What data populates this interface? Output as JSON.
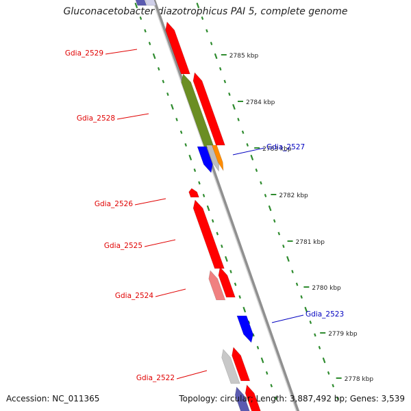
{
  "title": "Gluconacetobacter diazotrophicus PAI 5, complete genome",
  "footer": {
    "accession": "Accession: NC_011365",
    "summary": "Topology: circular; Length: 3,887,492 bp; Genes: 3,539"
  },
  "colors": {
    "backbone": "#909090",
    "backbone_highlight": "#d8d8d8",
    "gc_track": "#2e8b2e",
    "reverse_label": "#e00000",
    "forward_label": "#0000c0",
    "tick_label": "#222222"
  },
  "ticks": [
    {
      "label": "2785 kbp"
    },
    {
      "label": "2784 kbp"
    },
    {
      "label": "2783 kbp"
    },
    {
      "label": "2782 kbp"
    },
    {
      "label": "2781 kbp"
    },
    {
      "label": "2780 kbp"
    },
    {
      "label": "2779 kbp"
    },
    {
      "label": "2778 kbp"
    }
  ],
  "gene_labels": [
    {
      "name": "Gdia_2529",
      "strand": "reverse"
    },
    {
      "name": "Gdia_2528",
      "strand": "reverse"
    },
    {
      "name": "Gdia_2527",
      "strand": "forward"
    },
    {
      "name": "Gdia_2526",
      "strand": "reverse"
    },
    {
      "name": "Gdia_2525",
      "strand": "reverse"
    },
    {
      "name": "Gdia_2524",
      "strand": "reverse"
    },
    {
      "name": "Gdia_2523",
      "strand": "forward"
    },
    {
      "name": "Gdia_2522",
      "strand": "reverse"
    }
  ],
  "features": [
    {
      "id": "reverse-strand-gene",
      "fill": "#5a5ab0"
    },
    {
      "id": "reverse-strand-gene",
      "fill": "#cfcfe8"
    },
    {
      "id": "reverse-strand-gene",
      "fill": "#ff0000"
    },
    {
      "id": "reverse-strand-gene",
      "fill": "#6b8e23"
    },
    {
      "id": "reverse-strand-gene",
      "fill": "#ff0000"
    },
    {
      "id": "forward-strand-gene",
      "fill": "#0000ff"
    },
    {
      "id": "forward-strand-gene",
      "fill": "#bdbdbd"
    },
    {
      "id": "forward-strand-gene",
      "fill": "#ff8c00"
    },
    {
      "id": "reverse-strand-gene",
      "fill": "#ff0000"
    },
    {
      "id": "reverse-strand-gene",
      "fill": "#ff0000"
    },
    {
      "id": "reverse-strand-gene",
      "fill": "#f08080"
    },
    {
      "id": "reverse-strand-gene",
      "fill": "#ff0000"
    },
    {
      "id": "forward-strand-gene",
      "fill": "#0000ff"
    },
    {
      "id": "reverse-strand-gene",
      "fill": "#c8c8c8"
    },
    {
      "id": "reverse-strand-gene",
      "fill": "#ff0000"
    },
    {
      "id": "reverse-strand-gene",
      "fill": "#5a5ab0"
    },
    {
      "id": "reverse-strand-gene",
      "fill": "#ff0000"
    }
  ]
}
